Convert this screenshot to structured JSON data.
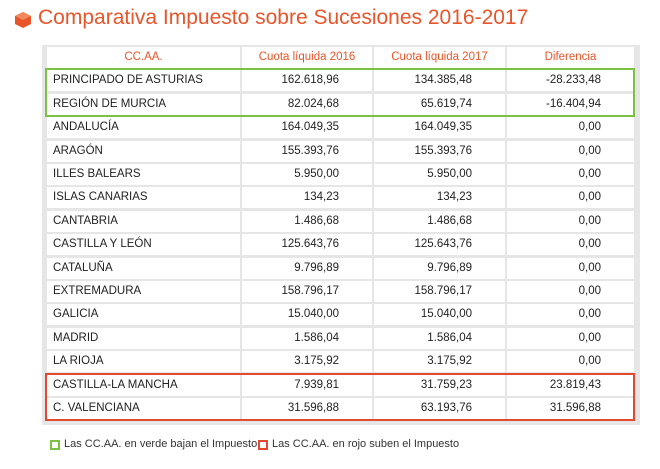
{
  "header": {
    "title": "Comparativa Impuesto sobre Sucesiones 2016-2017"
  },
  "table": {
    "columns": [
      "CC.AA.",
      "Cuota líquida 2016",
      "Cuota líquida 2017",
      "Diferencia"
    ],
    "rows": [
      [
        "PRINCIPADO DE ASTURIAS",
        "162.618,96",
        "134.385,48",
        "-28.233,48"
      ],
      [
        "REGIÓN DE MURCIA",
        "82.024,68",
        "65.619,74",
        "-16.404,94"
      ],
      [
        "ANDALUCÍA",
        "164.049,35",
        "164.049,35",
        "0,00"
      ],
      [
        "ARAGÓN",
        "155.393,76",
        "155.393,76",
        "0,00"
      ],
      [
        "ILLES BALEARS",
        "5.950,00",
        "5.950,00",
        "0,00"
      ],
      [
        "ISLAS CANARIAS",
        "134,23",
        "134,23",
        "0,00"
      ],
      [
        "CANTABRIA",
        "1.486,68",
        "1.486,68",
        "0,00"
      ],
      [
        "CASTILLA Y LEÓN",
        "125.643,76",
        "125.643,76",
        "0,00"
      ],
      [
        "CATALUÑA",
        "9.796,89",
        "9.796,89",
        "0,00"
      ],
      [
        "EXTREMADURA",
        "158.796,17",
        "158.796,17",
        "0,00"
      ],
      [
        "GALICIA",
        "15.040,00",
        "15.040,00",
        "0,00"
      ],
      [
        "MADRID",
        "1.586,04",
        "1.586,04",
        "0,00"
      ],
      [
        "LA RIOJA",
        "3.175,92",
        "3.175,92",
        "0,00"
      ],
      [
        "CASTILLA-LA MANCHA",
        "7.939,81",
        "31.759,23",
        "23.819,43"
      ],
      [
        "C. VALENCIANA",
        "31.596,88",
        "63.193,76",
        "31.596,88"
      ]
    ]
  },
  "legend": [
    "Las CC.AA. en verde bajan el Impuesto",
    "Las CC.AA. en rojo suben el Impuesto"
  ]
}
